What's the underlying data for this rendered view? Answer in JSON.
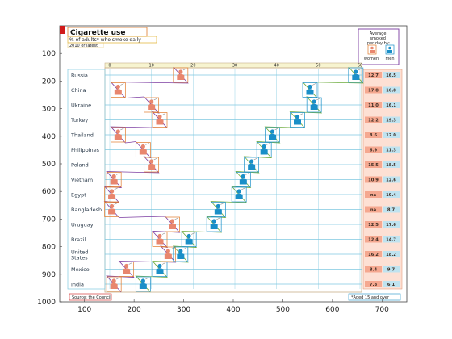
{
  "chart_data": {
    "type": "scatter",
    "title": "Cigarette use",
    "subtitle": "% of adults* who smoke daily",
    "subtitle2": "2010 or latest",
    "source": "Source: the Council",
    "footnote": "*Aged 15 and over",
    "legend": {
      "title": "Average smoked per day by:",
      "women": "women",
      "men": "men",
      "women_color": "#e8866e",
      "men_color": "#1a8fc8"
    },
    "axes": {
      "x_outer": {
        "ticks": [
          100,
          200,
          300,
          400,
          500,
          600,
          700
        ],
        "lim": [
          50,
          750
        ]
      },
      "y_outer": {
        "ticks": [
          100,
          200,
          300,
          400,
          500,
          600,
          700,
          800,
          900,
          1000
        ],
        "lim": [
          0,
          1000
        ],
        "reversed": true
      },
      "x_inner": {
        "ticks": [
          0,
          10,
          20,
          30,
          40,
          50,
          60
        ]
      }
    },
    "colors": {
      "women": "#e8866e",
      "men": "#1a8fc8",
      "women_line": "#7a3aa0",
      "men_line": "#6aaa3a",
      "grid": "#7fc8e0",
      "frame": "#c8b08a"
    },
    "countries": [
      {
        "name": "Russia",
        "women_pct": 17,
        "men_pct": 59,
        "women_per_day": "12.7",
        "men_per_day": "16.5"
      },
      {
        "name": "China",
        "women_pct": 2,
        "men_pct": 48,
        "women_per_day": "17.8",
        "men_per_day": "16.8"
      },
      {
        "name": "Ukraine",
        "women_pct": 10,
        "men_pct": 49,
        "women_per_day": "11.0",
        "men_per_day": "16.1"
      },
      {
        "name": "Turkey",
        "women_pct": 12,
        "men_pct": 45,
        "women_per_day": "12.2",
        "men_per_day": "19.3"
      },
      {
        "name": "Thailand",
        "women_pct": 2,
        "men_pct": 39,
        "women_per_day": "8.6",
        "men_per_day": "12.0"
      },
      {
        "name": "Philippines",
        "women_pct": 8,
        "men_pct": 37,
        "women_per_day": "6.9",
        "men_per_day": "11.3"
      },
      {
        "name": "Poland",
        "women_pct": 10,
        "men_pct": 34,
        "women_per_day": "15.5",
        "men_per_day": "18.5"
      },
      {
        "name": "Vietnam",
        "women_pct": 1,
        "men_pct": 32,
        "women_per_day": "10.9",
        "men_per_day": "12.6"
      },
      {
        "name": "Egypt",
        "women_pct": 0.5,
        "men_pct": 31,
        "women_per_day": "na",
        "men_per_day": "19.4"
      },
      {
        "name": "Bangladesh",
        "women_pct": 0.5,
        "men_pct": 26,
        "women_per_day": "na",
        "men_per_day": "8.7"
      },
      {
        "name": "Uruguay",
        "women_pct": 15,
        "men_pct": 25,
        "women_per_day": "12.5",
        "men_per_day": "17.6"
      },
      {
        "name": "Brazil",
        "women_pct": 12,
        "men_pct": 19,
        "women_per_day": "12.4",
        "men_per_day": "14.7"
      },
      {
        "name": "United States",
        "women_pct": 14,
        "men_pct": 17,
        "women_per_day": "16.2",
        "men_per_day": "18.2"
      },
      {
        "name": "Mexico",
        "women_pct": 4,
        "men_pct": 12,
        "women_per_day": "8.4",
        "men_per_day": "9.7"
      },
      {
        "name": "India",
        "women_pct": 1,
        "men_pct": 8,
        "women_per_day": "7.8",
        "men_per_day": "6.1"
      }
    ]
  }
}
